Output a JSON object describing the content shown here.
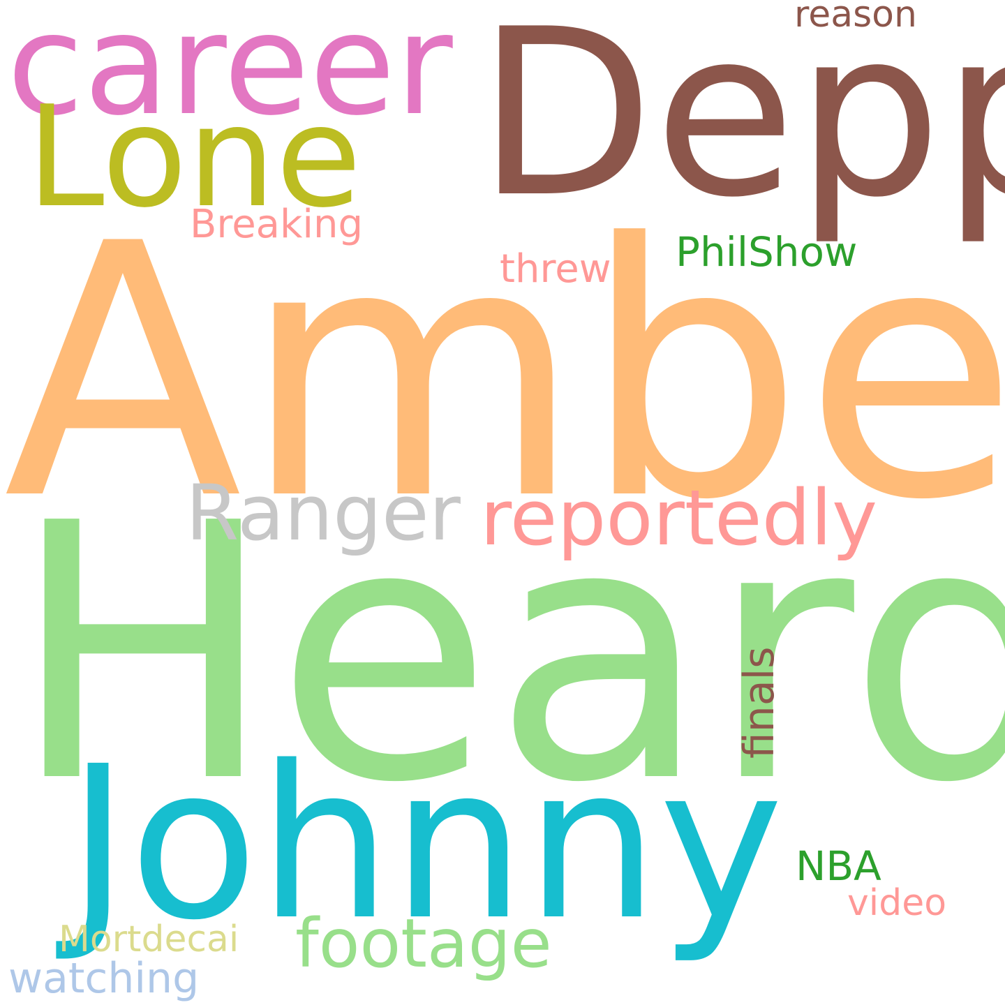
{
  "words": [
    {
      "text": "Amber",
      "color": "#ffbb78"
    },
    {
      "text": "Heard",
      "color": "#98df8a"
    },
    {
      "text": "Depp",
      "color": "#8c564b"
    },
    {
      "text": "Johnny",
      "color": "#17becf"
    },
    {
      "text": "career",
      "color": "#e377c2"
    },
    {
      "text": "Lone",
      "color": "#bcbd22"
    },
    {
      "text": "Ranger",
      "color": "#c7c7c7"
    },
    {
      "text": "reportedly",
      "color": "#ff9896"
    },
    {
      "text": "footage",
      "color": "#98df8a"
    },
    {
      "text": "PhilShow",
      "color": "#2ca02c"
    },
    {
      "text": "Breaking",
      "color": "#ff9896"
    },
    {
      "text": "threw",
      "color": "#ff9896"
    },
    {
      "text": "reason",
      "color": "#8c564b"
    },
    {
      "text": "finals",
      "color": "#8c564b"
    },
    {
      "text": "NBA",
      "color": "#2ca02c"
    },
    {
      "text": "video",
      "color": "#ff9896"
    },
    {
      "text": "Mortdecai",
      "color": "#dbdb8d"
    },
    {
      "text": "watching",
      "color": "#aec7e8"
    }
  ]
}
